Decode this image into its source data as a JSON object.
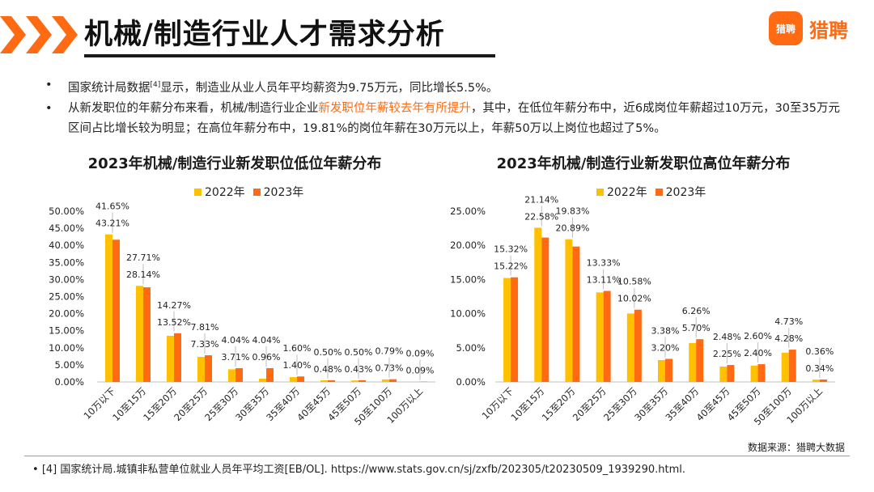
{
  "header": {
    "title": "机械/制造行业人才需求分析",
    "logo_mark": "猎聘",
    "logo_text": "猎聘"
  },
  "bullets": {
    "b1_pre": "国家统计局数据",
    "b1_ref": "[4]",
    "b1_post": "显示，制造业从业人员年平均薪资为9.75万元，同比增长5.5%。",
    "b2_pre": "从新发职位的年薪分布来看，机械/制造行业企业",
    "b2_hl": "新发职位年薪较去年有所提升",
    "b2_post": "，其中，在低位年薪分布中，近6成岗位年薪超过10万元，30至35万元区间占比增长较为明显；在高位年薪分布中，19.81%的岗位年薪在30万元以上，年薪50万以上岗位也超过了5%。"
  },
  "colors": {
    "s2022": "#FFC000",
    "s2023": "#FF6A12",
    "accent": "#FF6A12"
  },
  "chart_data": [
    {
      "type": "bar",
      "title": "2023年机械/制造行业新发职位低位年薪分布",
      "categories": [
        "10万以下",
        "10至15万",
        "15至20万",
        "20至25万",
        "25至30万",
        "30至35万",
        "35至40万",
        "40至45万",
        "45至50万",
        "50至100万",
        "100万以上"
      ],
      "series": [
        {
          "name": "2022年",
          "values": [
            43.21,
            28.14,
            13.52,
            7.33,
            3.71,
            0.96,
            1.4,
            0.48,
            0.43,
            0.73,
            0.09
          ]
        },
        {
          "name": "2023年",
          "values": [
            41.65,
            27.71,
            14.27,
            7.81,
            4.04,
            4.04,
            1.6,
            0.5,
            0.5,
            0.79,
            0.09
          ]
        }
      ],
      "yticks": [
        "0.00%",
        "5.00%",
        "10.00%",
        "15.00%",
        "20.00%",
        "25.00%",
        "30.00%",
        "35.00%",
        "40.00%",
        "45.00%",
        "50.00%"
      ],
      "ylim": [
        0,
        50
      ],
      "xlabel": "",
      "ylabel": ""
    },
    {
      "type": "bar",
      "title": "2023年机械/制造行业新发职位高位年薪分布",
      "categories": [
        "10万以下",
        "10至15万",
        "15至20万",
        "20至25万",
        "25至30万",
        "30至35万",
        "35至40万",
        "40至45万",
        "45至50万",
        "50至100万",
        "100万以上"
      ],
      "series": [
        {
          "name": "2022年",
          "values": [
            15.22,
            22.58,
            20.89,
            13.11,
            10.02,
            3.2,
            5.7,
            2.25,
            2.4,
            4.28,
            0.34
          ]
        },
        {
          "name": "2023年",
          "values": [
            15.32,
            21.14,
            19.83,
            13.33,
            10.58,
            3.38,
            6.26,
            2.48,
            2.6,
            4.73,
            0.36
          ]
        }
      ],
      "yticks": [
        "0.00%",
        "5.00%",
        "10.00%",
        "15.00%",
        "20.00%",
        "25.00%"
      ],
      "ylim": [
        0,
        25
      ],
      "xlabel": "",
      "ylabel": ""
    }
  ],
  "source": "数据来源：猎聘大数据",
  "footnote": "[4] 国家统计局.城镇非私营单位就业人员年平均工资[EB/OL]. https://www.stats.gov.cn/sj/zxfb/202305/t20230509_1939290.html."
}
